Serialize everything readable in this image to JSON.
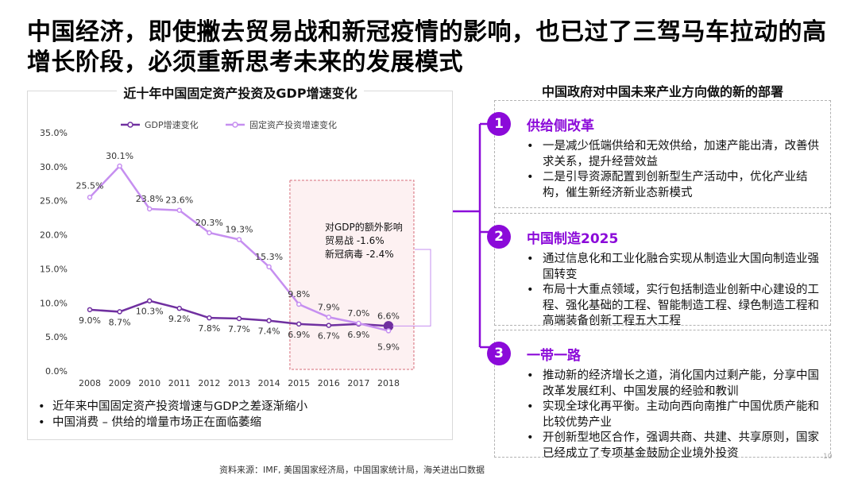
{
  "title": "中国经济，即使撇去贸易战和新冠疫情的影响，也已过了三驾马车拉动的高增长阶段，必须重新思考未来的发展模式",
  "chart_data": {
    "type": "line",
    "title": "近十年中国固定资产投资及GDP增速变化",
    "x": [
      "2008",
      "2009",
      "2010",
      "2011",
      "2012",
      "2013",
      "2014",
      "2015",
      "2016",
      "2017",
      "2018"
    ],
    "y_ticks": [
      "0.0%",
      "5.0%",
      "10.0%",
      "15.0%",
      "20.0%",
      "25.0%",
      "30.0%",
      "35.0%"
    ],
    "ylim": [
      0,
      35
    ],
    "series": [
      {
        "name": "GDP增速变化",
        "values": [
          9.0,
          8.7,
          10.3,
          9.2,
          7.8,
          7.7,
          7.4,
          6.9,
          6.7,
          6.9,
          6.6
        ],
        "labels": [
          "9.0%",
          "8.7%",
          "10.3%",
          "9.2%",
          "7.8%",
          "7.7%",
          "7.4%",
          "6.9%",
          "6.7%",
          "6.9%",
          "6.6%"
        ],
        "color": "#7030a0"
      },
      {
        "name": "固定资产投资增速变化",
        "values": [
          25.5,
          30.1,
          23.8,
          23.6,
          20.3,
          19.3,
          15.3,
          9.8,
          7.9,
          7.0,
          5.9
        ],
        "labels": [
          "25.5%",
          "30.1%",
          "23.8%",
          "23.6%",
          "20.3%",
          "19.3%",
          "15.3%",
          "9.8%",
          "7.9%",
          "7.0%",
          "5.9%"
        ],
        "color": "#c68ff0"
      }
    ],
    "annotation": {
      "line1": "对GDP的额外影响",
      "line2": "贸易战 -1.6%",
      "line3": "新冠病毒 -2.4%"
    },
    "grid": false,
    "legend": "top-left"
  },
  "left_bullets": [
    "近年来中国固定资产投资增速与GDP之差逐渐缩小",
    "中国消费 – 供给的增量市场正在面临萎缩"
  ],
  "right": {
    "heading": "中国政府对中国未来产业方向做的新的部署",
    "sections": [
      {
        "num": "1",
        "title": "供给侧改革",
        "items": [
          "一是减少低端供给和无效供给，加速产能出清，改善供求关系，提升经营效益",
          "二是引导资源配置到创新型生产活动中，优化产业结构，催生新经济新业态新模式"
        ]
      },
      {
        "num": "2",
        "title": "中国制造2025",
        "items": [
          "通过信息化和工业化融合实现从制造业大国向制造业强国转变",
          "布局十大重点领域，实行包括制造业创新中心建设的工程、强化基础的工程、智能制造工程、绿色制造工程和高端装备创新工程五大工程"
        ]
      },
      {
        "num": "3",
        "title": "一带一路",
        "items": [
          "推动新的经济增长之道，消化国内过剩产能，分享中国改革发展红利、中国发展的经验和教训",
          "实现全球化再平衡。主动向西向南推广中国优质产能和比较优势产业",
          "开创新型地区合作，强调共商、共建、共享原则，国家已经成立了专项基金鼓励企业境外投资"
        ]
      }
    ]
  },
  "accent_color": "#8b0ad9",
  "source": "资料来源：IMF, 美国国家经济局，中国国家统计局，海关进出口数据",
  "page_number": "10"
}
